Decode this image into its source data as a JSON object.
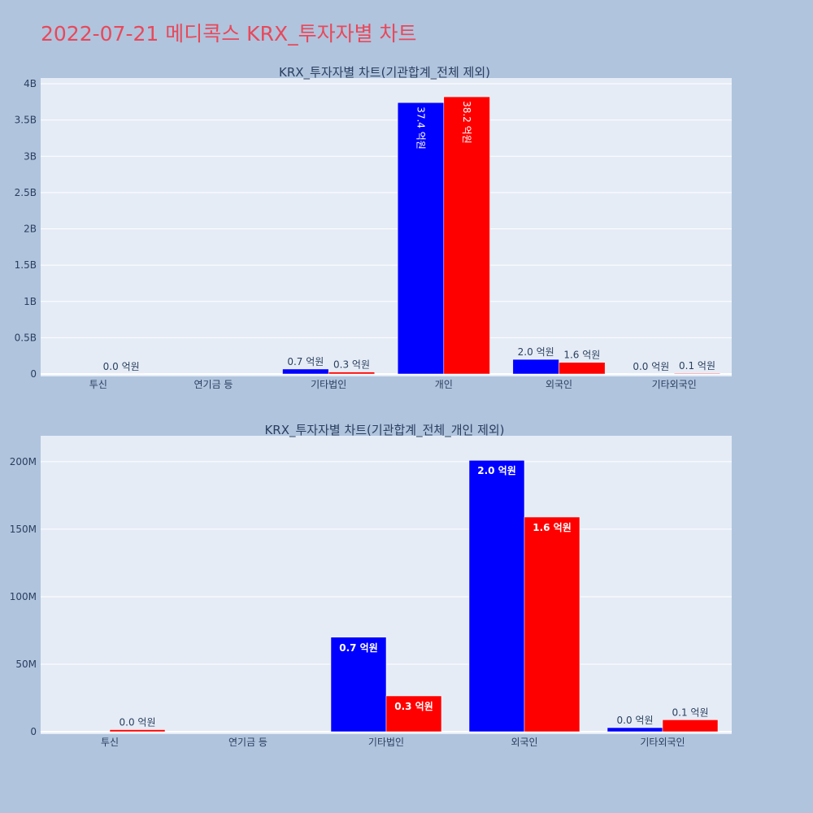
{
  "title": "2022-07-21 메디콕스 KRX_투자자별 차트",
  "colors": {
    "buy": "#0000ff",
    "sell": "#ff0000",
    "title": "#e8485a",
    "plot_bg": "#e5ecf6",
    "page_bg": "#b0c4de"
  },
  "chart_data": [
    {
      "type": "bar",
      "title": "KRX_투자자별 차트(기관합계_전체 제외)",
      "categories": [
        "투신",
        "연기금 등",
        "기타법인",
        "개인",
        "외국인",
        "기타외국인"
      ],
      "ylim": [
        0,
        4000000000
      ],
      "yticks": [
        0,
        500000000,
        1000000000,
        1500000000,
        2000000000,
        2500000000,
        3000000000,
        3500000000,
        4000000000
      ],
      "ytick_labels": [
        "0",
        "0.5B",
        "1B",
        "1.5B",
        "2B",
        "2.5B",
        "3B",
        "3.5B",
        "4B"
      ],
      "label_mode": "mixed",
      "series": [
        {
          "color": "#0000ff",
          "values": [
            0,
            0,
            68000000,
            3740000000,
            201000000,
            2500000
          ],
          "labels": [
            "",
            "",
            "0.7 억원",
            "37.4 억원",
            "2.0 억원",
            "0.0 억원"
          ]
        },
        {
          "color": "#ff0000",
          "values": [
            2000000,
            0,
            27000000,
            3820000000,
            160000000,
            9000000
          ],
          "labels": [
            "0.0 억원",
            "",
            "0.3 억원",
            "38.2 억원",
            "1.6 억원",
            "0.1 억원"
          ]
        }
      ]
    },
    {
      "type": "bar",
      "title": "KRX_투자자별 차트(기관합계_전체_개인 제외)",
      "categories": [
        "투신",
        "연기금 등",
        "기타법인",
        "외국인",
        "기타외국인"
      ],
      "ylim": [
        0,
        215000000
      ],
      "yticks": [
        0,
        50000000,
        100000000,
        150000000,
        200000000
      ],
      "ytick_labels": [
        "0",
        "50M",
        "100M",
        "150M",
        "200M"
      ],
      "label_mode": "inside",
      "series": [
        {
          "color": "#0000ff",
          "values": [
            0,
            0,
            70000000,
            201000000,
            3000000
          ],
          "labels": [
            "",
            "",
            "0.7 억원",
            "2.0 억원",
            "0.0 억원"
          ]
        },
        {
          "color": "#ff0000",
          "values": [
            1500000,
            0,
            26500000,
            159000000,
            8800000
          ],
          "labels": [
            "0.0 억원",
            "",
            "0.3 억원",
            "1.6 억원",
            "0.1 억원"
          ]
        }
      ]
    }
  ]
}
